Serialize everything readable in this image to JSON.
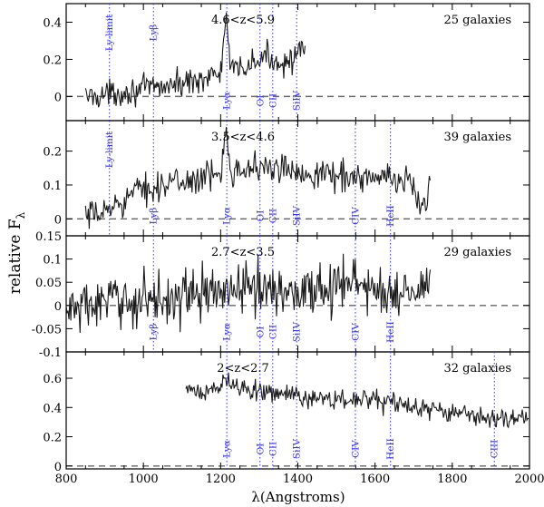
{
  "chart_data": {
    "type": "line",
    "title": "",
    "xlabel": "λ(Angstroms)",
    "ylabel": "relative F",
    "ylabel_subscript": "λ",
    "xlim": [
      800,
      2000
    ],
    "xticks": [
      800,
      1000,
      1200,
      1400,
      1600,
      1800,
      2000
    ],
    "line_color": "#1a1a1a",
    "marker_color": "#3333ff",
    "zero_line_color": "#666666",
    "panels": [
      {
        "redshift_label": "4.6<z<5.9",
        "count_label": "25 galaxies",
        "ylim": [
          -0.13,
          0.5
        ],
        "yticks": [
          0,
          0.2,
          0.4
        ],
        "ytick_labels": [
          "0",
          "0.2",
          "0.4"
        ],
        "x_start": 850,
        "x_end": 1420,
        "lines": [
          {
            "name": "Ly-limit",
            "x": 912,
            "label_pos": "top"
          },
          {
            "name": "Lyβ",
            "x": 1026,
            "label_pos": "top"
          },
          {
            "name": "Lyα",
            "x": 1216,
            "label_pos": "bottom"
          },
          {
            "name": "OI",
            "x": 1302,
            "label_pos": "bottom"
          },
          {
            "name": "CII",
            "x": 1335,
            "label_pos": "bottom"
          },
          {
            "name": "SiIV",
            "x": 1397,
            "label_pos": "bottom"
          }
        ],
        "continuum": [
          [
            850,
            0.0
          ],
          [
            900,
            0.01
          ],
          [
            1000,
            0.04
          ],
          [
            1100,
            0.07
          ],
          [
            1150,
            0.1
          ],
          [
            1200,
            0.12
          ],
          [
            1215,
            0.45
          ],
          [
            1225,
            0.13
          ],
          [
            1300,
            0.19
          ],
          [
            1320,
            0.22
          ],
          [
            1350,
            0.18
          ],
          [
            1400,
            0.22
          ],
          [
            1420,
            0.25
          ]
        ],
        "noise": 0.035
      },
      {
        "redshift_label": "3.5<z<4.6",
        "count_label": "39 galaxies",
        "ylim": [
          -0.05,
          0.29
        ],
        "yticks": [
          0,
          0.1,
          0.2
        ],
        "ytick_labels": [
          "0",
          "0.1",
          "0.2"
        ],
        "x_start": 850,
        "x_end": 1745,
        "lines": [
          {
            "name": "Ly-limit",
            "x": 912,
            "label_pos": "top"
          },
          {
            "name": "Lyβ",
            "x": 1026,
            "label_pos": "bottom"
          },
          {
            "name": "Lyα",
            "x": 1216,
            "label_pos": "bottom"
          },
          {
            "name": "OI",
            "x": 1302,
            "label_pos": "bottom"
          },
          {
            "name": "CII",
            "x": 1335,
            "label_pos": "bottom"
          },
          {
            "name": "SiIV",
            "x": 1397,
            "label_pos": "bottom"
          },
          {
            "name": "CIV",
            "x": 1549,
            "label_pos": "bottom"
          },
          {
            "name": "HeII",
            "x": 1640,
            "label_pos": "bottom"
          }
        ],
        "continuum": [
          [
            850,
            0.0
          ],
          [
            900,
            0.02
          ],
          [
            950,
            0.06
          ],
          [
            1000,
            0.09
          ],
          [
            1100,
            0.11
          ],
          [
            1200,
            0.13
          ],
          [
            1215,
            0.28
          ],
          [
            1225,
            0.15
          ],
          [
            1300,
            0.15
          ],
          [
            1400,
            0.14
          ],
          [
            1500,
            0.13
          ],
          [
            1600,
            0.12
          ],
          [
            1700,
            0.11
          ],
          [
            1720,
            0.02
          ],
          [
            1740,
            0.1
          ]
        ],
        "noise": 0.022
      },
      {
        "redshift_label": "2.7<z<3.5",
        "count_label": "29 galaxies",
        "ylim": [
          -0.1,
          0.15
        ],
        "yticks": [
          -0.1,
          -0.05,
          0,
          0.05,
          0.1,
          0.15
        ],
        "ytick_labels": [
          "-0.1",
          "-0.05",
          "0",
          "0.05",
          "0.1",
          "0.15"
        ],
        "x_start": 800,
        "x_end": 1745,
        "lines": [
          {
            "name": "Lyβ",
            "x": 1026,
            "label_pos": "bottom"
          },
          {
            "name": "Lyα",
            "x": 1216,
            "label_pos": "bottom"
          },
          {
            "name": "OI",
            "x": 1302,
            "label_pos": "bottom"
          },
          {
            "name": "CII",
            "x": 1335,
            "label_pos": "bottom"
          },
          {
            "name": "SiIV",
            "x": 1397,
            "label_pos": "bottom"
          },
          {
            "name": "CIV",
            "x": 1549,
            "label_pos": "bottom"
          },
          {
            "name": "HeII",
            "x": 1640,
            "label_pos": "bottom"
          }
        ],
        "continuum": [
          [
            800,
            -0.01
          ],
          [
            860,
            0.0
          ],
          [
            950,
            0.01
          ],
          [
            1100,
            0.02
          ],
          [
            1200,
            0.03
          ],
          [
            1300,
            0.04
          ],
          [
            1400,
            0.03
          ],
          [
            1550,
            0.05
          ],
          [
            1600,
            0.03
          ],
          [
            1700,
            0.03
          ],
          [
            1745,
            0.04
          ]
        ],
        "noise": 0.028
      },
      {
        "redshift_label": "2<z<2.7",
        "count_label": "32 galaxies",
        "ylim": [
          -0.02,
          0.78
        ],
        "yticks": [
          0,
          0.2,
          0.4,
          0.6
        ],
        "ytick_labels": [
          "0",
          "0.2",
          "0.4",
          "0.6"
        ],
        "x_start": 1110,
        "x_end": 2000,
        "lines": [
          {
            "name": "Lyα",
            "x": 1216,
            "label_pos": "bottom"
          },
          {
            "name": "OI",
            "x": 1302,
            "label_pos": "bottom"
          },
          {
            "name": "CII",
            "x": 1335,
            "label_pos": "bottom"
          },
          {
            "name": "SiIV",
            "x": 1397,
            "label_pos": "bottom"
          },
          {
            "name": "CIV",
            "x": 1549,
            "label_pos": "bottom"
          },
          {
            "name": "HeII",
            "x": 1640,
            "label_pos": "bottom"
          },
          {
            "name": "CIII",
            "x": 1909,
            "label_pos": "bottom"
          }
        ],
        "continuum": [
          [
            1110,
            0.5
          ],
          [
            1200,
            0.52
          ],
          [
            1215,
            0.62
          ],
          [
            1230,
            0.55
          ],
          [
            1300,
            0.52
          ],
          [
            1400,
            0.47
          ],
          [
            1550,
            0.45
          ],
          [
            1640,
            0.44
          ],
          [
            1700,
            0.4
          ],
          [
            1800,
            0.36
          ],
          [
            1900,
            0.33
          ],
          [
            2000,
            0.3
          ]
        ],
        "noise": 0.035
      }
    ]
  }
}
